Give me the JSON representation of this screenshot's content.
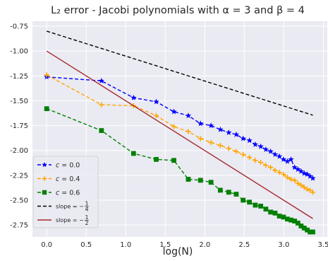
{
  "chart_data": {
    "type": "line",
    "title": "L₂ error - Jacobi polynomials with α = 3 and β = 4",
    "xlabel": "log(N)",
    "ylabel": "",
    "xlim": [
      -0.18,
      3.55
    ],
    "ylim": [
      -2.87,
      -0.7
    ],
    "xticks": [
      0.0,
      0.5,
      1.0,
      1.5,
      2.0,
      2.5,
      3.0,
      3.5
    ],
    "xtick_labels": [
      "0.0",
      "0.5",
      "1.0",
      "1.5",
      "2.0",
      "2.5",
      "3.0",
      "3.5"
    ],
    "yticks": [
      -0.75,
      -1.0,
      -1.25,
      -1.5,
      -1.75,
      -2.0,
      -2.25,
      -2.5,
      -2.75
    ],
    "ytick_labels": [
      "-0.75",
      "-1.00",
      "-1.25",
      "-1.50",
      "-1.75",
      "-2.00",
      "-2.25",
      "-2.50",
      "-2.75"
    ],
    "grid": true,
    "legend_position": "lower-left",
    "background_color": "#eaeaf2",
    "series": [
      {
        "name": "c = 0.0",
        "legend_prefix": "c = ",
        "legend_value": "0.0",
        "color": "#0000ff",
        "marker": "star",
        "style": "dashed",
        "x": [
          0.0,
          0.693,
          1.099,
          1.386,
          1.609,
          1.792,
          1.946,
          2.079,
          2.197,
          2.303,
          2.398,
          2.485,
          2.565,
          2.639,
          2.708,
          2.773,
          2.833,
          2.89,
          2.944,
          2.996,
          3.045,
          3.091,
          3.136,
          3.178,
          3.219,
          3.258,
          3.296,
          3.332,
          3.367
        ],
        "values": [
          -1.26,
          -1.3,
          -1.47,
          -1.51,
          -1.61,
          -1.65,
          -1.73,
          -1.75,
          -1.79,
          -1.82,
          -1.84,
          -1.88,
          -1.9,
          -1.94,
          -1.96,
          -1.99,
          -2.01,
          -2.04,
          -2.06,
          -2.09,
          -2.11,
          -2.09,
          -2.17,
          -2.19,
          -2.21,
          -2.23,
          -2.24,
          -2.26,
          -2.28
        ]
      },
      {
        "name": "c = 0.4",
        "legend_prefix": "c = ",
        "legend_value": "0.4",
        "color": "#ffa500",
        "marker": "plus",
        "style": "dashed",
        "x": [
          0.0,
          0.693,
          1.099,
          1.386,
          1.609,
          1.792,
          1.946,
          2.079,
          2.197,
          2.303,
          2.398,
          2.485,
          2.565,
          2.639,
          2.708,
          2.773,
          2.833,
          2.89,
          2.944,
          2.996,
          3.045,
          3.091,
          3.136,
          3.178,
          3.219,
          3.258,
          3.296,
          3.332,
          3.367
        ],
        "values": [
          -1.24,
          -1.54,
          -1.55,
          -1.65,
          -1.76,
          -1.81,
          -1.88,
          -1.92,
          -1.95,
          -1.98,
          -2.01,
          -2.04,
          -2.07,
          -2.1,
          -2.12,
          -2.15,
          -2.17,
          -2.2,
          -2.22,
          -2.24,
          -2.27,
          -2.29,
          -2.3,
          -2.33,
          -2.35,
          -2.37,
          -2.39,
          -2.4,
          -2.42
        ]
      },
      {
        "name": "c = 0.6",
        "legend_prefix": "c = ",
        "legend_value": "0.6",
        "color": "#008000",
        "marker": "square",
        "style": "dashed",
        "x": [
          0.0,
          0.693,
          1.099,
          1.386,
          1.609,
          1.792,
          1.946,
          2.079,
          2.197,
          2.303,
          2.398,
          2.485,
          2.565,
          2.639,
          2.708,
          2.773,
          2.833,
          2.89,
          2.944,
          2.996,
          3.045,
          3.091,
          3.136,
          3.178,
          3.219,
          3.258,
          3.296,
          3.332,
          3.367
        ],
        "values": [
          -1.58,
          -1.8,
          -2.03,
          -2.09,
          -2.1,
          -2.29,
          -2.3,
          -2.32,
          -2.4,
          -2.42,
          -2.44,
          -2.5,
          -2.52,
          -2.55,
          -2.56,
          -2.59,
          -2.62,
          -2.63,
          -2.66,
          -2.67,
          -2.69,
          -2.7,
          -2.71,
          -2.73,
          -2.76,
          -2.78,
          -2.8,
          -2.82,
          -2.82
        ]
      },
      {
        "name": "slope = −1/4",
        "legend_prefix": "slope = −",
        "legend_value": "1/4",
        "color": "#000000",
        "marker": "none",
        "style": "dashed",
        "x": [
          0.0,
          3.367
        ],
        "values": [
          -0.8,
          -1.645
        ]
      },
      {
        "name": "slope = −1/2",
        "legend_prefix": "slope = −",
        "legend_value": "1/2",
        "color": "#a52a2a",
        "marker": "none",
        "style": "solid",
        "x": [
          0.0,
          3.367
        ],
        "values": [
          -1.0,
          -2.685
        ]
      }
    ]
  }
}
